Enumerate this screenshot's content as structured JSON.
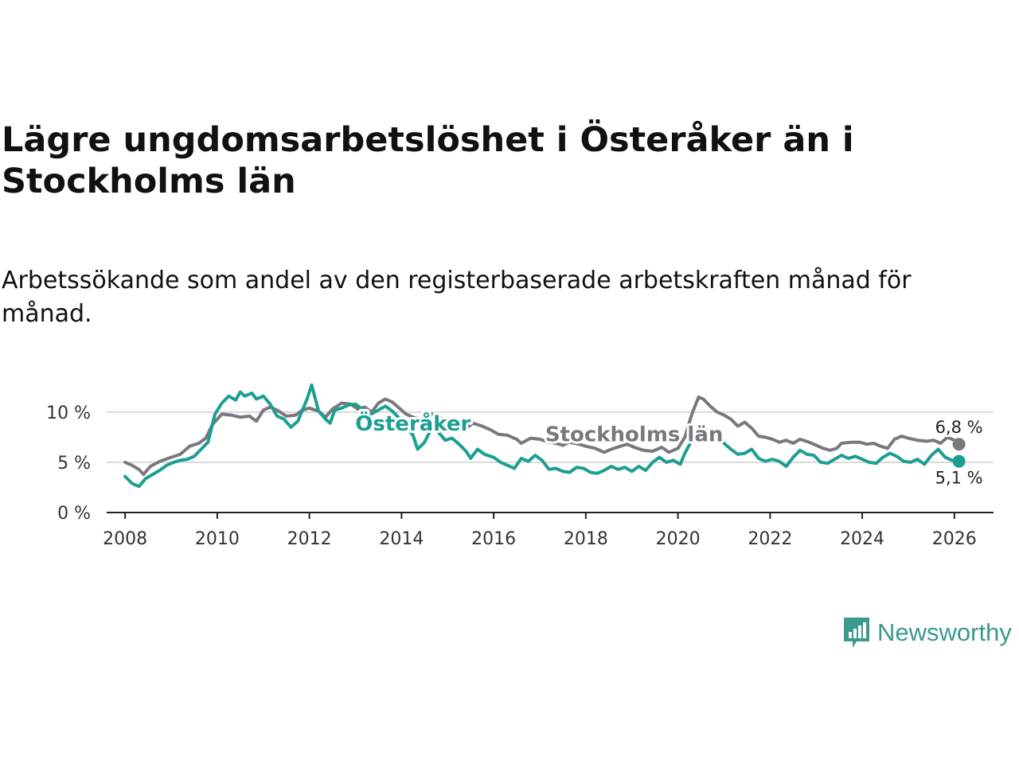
{
  "header": {
    "title": "Lägre ungdomsarbetslöshet i Österåker än i Stockholms län",
    "subtitle": "Arbetssökande som andel av den registerbaserade arbetskraften månad för månad."
  },
  "chart_data": {
    "type": "line",
    "title": "Lägre ungdomsarbetslöshet i Österåker än i Stockholms län",
    "subtitle": "Arbetssökande som andel av den registerbaserade arbetskraften månad för månad.",
    "xlabel": "",
    "ylabel": "",
    "xlim": [
      2007.6,
      2026.85
    ],
    "ylim": [
      0,
      13
    ],
    "x_ticks": [
      2008,
      2010,
      2012,
      2014,
      2016,
      2018,
      2020,
      2022,
      2024,
      2026
    ],
    "x_tick_labels": [
      "2008",
      "2010",
      "2012",
      "2014",
      "2016",
      "2018",
      "2020",
      "2022",
      "2024",
      "2026"
    ],
    "y_ticks": [
      0,
      5,
      10
    ],
    "y_tick_labels": [
      "0 %",
      "5 %",
      "10 %"
    ],
    "grid": true,
    "series": [
      {
        "name": "Stockholms län",
        "color": "#7a787c",
        "label": "Stockholms län",
        "end_label": "6,8 %",
        "points": [
          [
            2008.0,
            5.0
          ],
          [
            2008.15,
            4.7
          ],
          [
            2008.3,
            4.3
          ],
          [
            2008.4,
            3.8
          ],
          [
            2008.55,
            4.6
          ],
          [
            2008.75,
            5.1
          ],
          [
            2009.0,
            5.5
          ],
          [
            2009.2,
            5.8
          ],
          [
            2009.4,
            6.6
          ],
          [
            2009.6,
            6.9
          ],
          [
            2009.75,
            7.4
          ],
          [
            2009.9,
            8.8
          ],
          [
            2010.1,
            9.8
          ],
          [
            2010.3,
            9.7
          ],
          [
            2010.5,
            9.5
          ],
          [
            2010.7,
            9.6
          ],
          [
            2010.85,
            9.1
          ],
          [
            2011.0,
            10.2
          ],
          [
            2011.15,
            10.5
          ],
          [
            2011.3,
            10.2
          ],
          [
            2011.5,
            9.6
          ],
          [
            2011.7,
            9.7
          ],
          [
            2011.85,
            10.2
          ],
          [
            2012.0,
            10.4
          ],
          [
            2012.2,
            10.1
          ],
          [
            2012.35,
            9.5
          ],
          [
            2012.5,
            10.3
          ],
          [
            2012.7,
            10.9
          ],
          [
            2012.9,
            10.8
          ],
          [
            2013.05,
            10.3
          ],
          [
            2013.2,
            10.5
          ],
          [
            2013.35,
            10.0
          ],
          [
            2013.5,
            10.9
          ],
          [
            2013.65,
            11.3
          ],
          [
            2013.8,
            11.0
          ],
          [
            2013.95,
            10.4
          ],
          [
            2014.1,
            9.8
          ],
          [
            2014.3,
            9.4
          ],
          [
            2014.5,
            9.3
          ],
          [
            2014.65,
            9.8
          ],
          [
            2014.8,
            9.6
          ],
          [
            2015.0,
            8.9
          ],
          [
            2015.2,
            8.6
          ],
          [
            2015.4,
            8.4
          ],
          [
            2015.55,
            8.9
          ],
          [
            2015.75,
            8.6
          ],
          [
            2015.95,
            8.2
          ],
          [
            2016.1,
            7.8
          ],
          [
            2016.3,
            7.7
          ],
          [
            2016.5,
            7.3
          ],
          [
            2016.6,
            6.9
          ],
          [
            2016.8,
            7.4
          ],
          [
            2017.0,
            7.3
          ],
          [
            2017.2,
            7.0
          ],
          [
            2017.35,
            6.9
          ],
          [
            2017.5,
            6.7
          ],
          [
            2017.65,
            7.0
          ],
          [
            2017.85,
            6.8
          ],
          [
            2018.0,
            6.6
          ],
          [
            2018.2,
            6.4
          ],
          [
            2018.4,
            6.0
          ],
          [
            2018.55,
            6.3
          ],
          [
            2018.75,
            6.6
          ],
          [
            2018.9,
            6.8
          ],
          [
            2019.05,
            6.5
          ],
          [
            2019.25,
            6.2
          ],
          [
            2019.45,
            6.1
          ],
          [
            2019.65,
            6.5
          ],
          [
            2019.8,
            6.0
          ],
          [
            2020.0,
            6.4
          ],
          [
            2020.15,
            7.5
          ],
          [
            2020.3,
            9.8
          ],
          [
            2020.45,
            11.5
          ],
          [
            2020.55,
            11.3
          ],
          [
            2020.7,
            10.6
          ],
          [
            2020.85,
            10.0
          ],
          [
            2021.0,
            9.7
          ],
          [
            2021.15,
            9.3
          ],
          [
            2021.3,
            8.6
          ],
          [
            2021.45,
            9.0
          ],
          [
            2021.6,
            8.4
          ],
          [
            2021.75,
            7.6
          ],
          [
            2021.9,
            7.5
          ],
          [
            2022.05,
            7.3
          ],
          [
            2022.2,
            7.0
          ],
          [
            2022.35,
            7.2
          ],
          [
            2022.5,
            6.9
          ],
          [
            2022.65,
            7.3
          ],
          [
            2022.85,
            7.0
          ],
          [
            2023.0,
            6.7
          ],
          [
            2023.15,
            6.4
          ],
          [
            2023.3,
            6.2
          ],
          [
            2023.45,
            6.4
          ],
          [
            2023.55,
            6.9
          ],
          [
            2023.75,
            7.0
          ],
          [
            2023.95,
            7.0
          ],
          [
            2024.1,
            6.8
          ],
          [
            2024.25,
            6.9
          ],
          [
            2024.4,
            6.6
          ],
          [
            2024.55,
            6.4
          ],
          [
            2024.7,
            7.3
          ],
          [
            2024.85,
            7.6
          ],
          [
            2025.0,
            7.4
          ],
          [
            2025.2,
            7.2
          ],
          [
            2025.4,
            7.1
          ],
          [
            2025.55,
            7.2
          ],
          [
            2025.7,
            6.9
          ],
          [
            2025.85,
            7.5
          ],
          [
            2026.0,
            7.2
          ],
          [
            2026.1,
            6.8
          ]
        ]
      },
      {
        "name": "Österåker",
        "color": "#1c9f91",
        "label": "Österåker",
        "end_label": "5,1 %",
        "points": [
          [
            2008.0,
            3.6
          ],
          [
            2008.15,
            2.9
          ],
          [
            2008.3,
            2.6
          ],
          [
            2008.45,
            3.4
          ],
          [
            2008.6,
            3.8
          ],
          [
            2008.75,
            4.2
          ],
          [
            2008.9,
            4.7
          ],
          [
            2009.05,
            5.0
          ],
          [
            2009.2,
            5.2
          ],
          [
            2009.35,
            5.3
          ],
          [
            2009.5,
            5.6
          ],
          [
            2009.65,
            6.3
          ],
          [
            2009.8,
            7.0
          ],
          [
            2009.95,
            9.8
          ],
          [
            2010.1,
            10.9
          ],
          [
            2010.25,
            11.6
          ],
          [
            2010.4,
            11.2
          ],
          [
            2010.5,
            12.0
          ],
          [
            2010.6,
            11.6
          ],
          [
            2010.75,
            11.9
          ],
          [
            2010.85,
            11.3
          ],
          [
            2011.0,
            11.6
          ],
          [
            2011.15,
            10.8
          ],
          [
            2011.3,
            9.6
          ],
          [
            2011.45,
            9.3
          ],
          [
            2011.6,
            8.5
          ],
          [
            2011.75,
            9.1
          ],
          [
            2011.85,
            10.2
          ],
          [
            2011.95,
            11.3
          ],
          [
            2012.05,
            12.7
          ],
          [
            2012.2,
            10.1
          ],
          [
            2012.35,
            9.3
          ],
          [
            2012.45,
            8.9
          ],
          [
            2012.55,
            10.2
          ],
          [
            2012.7,
            10.4
          ],
          [
            2012.85,
            10.7
          ],
          [
            2013.0,
            10.8
          ],
          [
            2013.15,
            10.3
          ],
          [
            2013.3,
            9.7
          ],
          [
            2013.5,
            10.2
          ],
          [
            2013.65,
            10.6
          ],
          [
            2013.8,
            10.1
          ],
          [
            2013.95,
            9.4
          ],
          [
            2014.1,
            8.6
          ],
          [
            2014.25,
            7.7
          ],
          [
            2014.35,
            6.3
          ],
          [
            2014.5,
            7.0
          ],
          [
            2014.65,
            8.4
          ],
          [
            2014.8,
            8.0
          ],
          [
            2014.95,
            7.2
          ],
          [
            2015.1,
            7.4
          ],
          [
            2015.25,
            6.8
          ],
          [
            2015.4,
            6.1
          ],
          [
            2015.5,
            5.4
          ],
          [
            2015.65,
            6.3
          ],
          [
            2015.8,
            5.8
          ],
          [
            2016.0,
            5.5
          ],
          [
            2016.15,
            5.0
          ],
          [
            2016.3,
            4.7
          ],
          [
            2016.45,
            4.4
          ],
          [
            2016.6,
            5.4
          ],
          [
            2016.75,
            5.1
          ],
          [
            2016.9,
            5.7
          ],
          [
            2017.05,
            5.2
          ],
          [
            2017.2,
            4.3
          ],
          [
            2017.35,
            4.4
          ],
          [
            2017.5,
            4.1
          ],
          [
            2017.65,
            4.0
          ],
          [
            2017.8,
            4.5
          ],
          [
            2017.95,
            4.4
          ],
          [
            2018.1,
            4.0
          ],
          [
            2018.25,
            3.9
          ],
          [
            2018.4,
            4.2
          ],
          [
            2018.55,
            4.6
          ],
          [
            2018.7,
            4.3
          ],
          [
            2018.85,
            4.5
          ],
          [
            2019.0,
            4.1
          ],
          [
            2019.15,
            4.6
          ],
          [
            2019.3,
            4.2
          ],
          [
            2019.45,
            5.0
          ],
          [
            2019.6,
            5.5
          ],
          [
            2019.75,
            5.0
          ],
          [
            2019.9,
            5.2
          ],
          [
            2020.05,
            4.8
          ],
          [
            2020.15,
            5.9
          ],
          [
            2020.3,
            7.2
          ],
          [
            2020.45,
            8.1
          ],
          [
            2020.55,
            8.7
          ],
          [
            2020.7,
            7.5
          ],
          [
            2020.85,
            7.4
          ],
          [
            2021.0,
            6.9
          ],
          [
            2021.15,
            6.3
          ],
          [
            2021.3,
            5.8
          ],
          [
            2021.45,
            5.9
          ],
          [
            2021.6,
            6.3
          ],
          [
            2021.75,
            5.4
          ],
          [
            2021.9,
            5.1
          ],
          [
            2022.05,
            5.3
          ],
          [
            2022.2,
            5.1
          ],
          [
            2022.35,
            4.6
          ],
          [
            2022.5,
            5.5
          ],
          [
            2022.65,
            6.2
          ],
          [
            2022.8,
            5.8
          ],
          [
            2022.95,
            5.7
          ],
          [
            2023.1,
            5.0
          ],
          [
            2023.25,
            4.9
          ],
          [
            2023.4,
            5.3
          ],
          [
            2023.55,
            5.7
          ],
          [
            2023.7,
            5.4
          ],
          [
            2023.85,
            5.6
          ],
          [
            2024.0,
            5.3
          ],
          [
            2024.15,
            5.0
          ],
          [
            2024.3,
            4.9
          ],
          [
            2024.45,
            5.5
          ],
          [
            2024.6,
            5.9
          ],
          [
            2024.75,
            5.6
          ],
          [
            2024.9,
            5.1
          ],
          [
            2025.05,
            5.0
          ],
          [
            2025.2,
            5.3
          ],
          [
            2025.35,
            4.8
          ],
          [
            2025.5,
            5.7
          ],
          [
            2025.65,
            6.3
          ],
          [
            2025.8,
            5.5
          ],
          [
            2025.95,
            5.2
          ],
          [
            2026.1,
            5.1
          ]
        ]
      }
    ]
  },
  "logo": {
    "text": "Newsworthy"
  }
}
